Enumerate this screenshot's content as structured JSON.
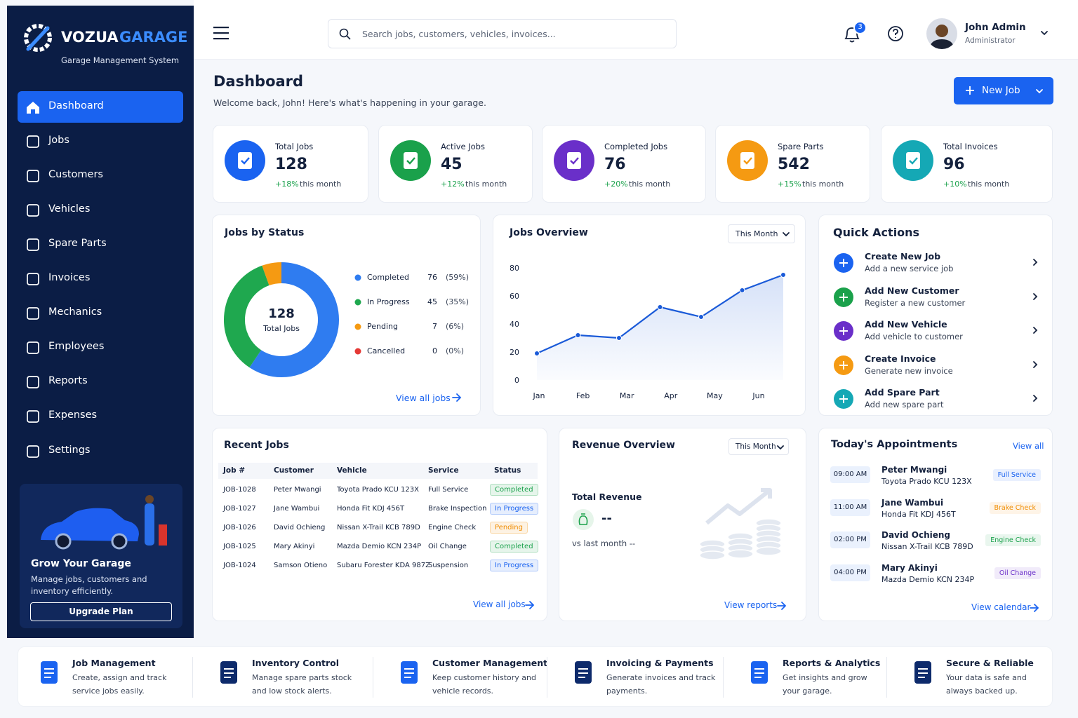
{
  "sidebar": {
    "brand": "VOZUA",
    "brand_accent": "GARAGE",
    "tagline": "Garage Management System",
    "nav": [
      "Dashboard",
      "Jobs",
      "Customers",
      "Vehicles",
      "Spare Parts",
      "Invoices",
      "Mechanics",
      "Employees",
      "Reports",
      "Expenses",
      "Settings"
    ],
    "active": 0,
    "promo": {
      "title": "Grow Your Garage",
      "text_lines": [
        "Manage jobs, customers and",
        "inventory efficiently."
      ],
      "button": "Upgrade Plan"
    }
  },
  "topbar": {
    "search": "Search jobs, customers, vehicles, invoices...",
    "notifications": 3,
    "user": {
      "name": "John Admin",
      "role": "Administrator"
    }
  },
  "header": {
    "title": "Dashboard",
    "subtitle": "Welcome back, John! Here's what's happening in your garage.",
    "button": "New Job"
  },
  "stats": [
    {
      "label": "Total Jobs",
      "value": 128,
      "change": "+18%",
      "period": "this month",
      "color": "#1a63f0"
    },
    {
      "label": "Active Jobs",
      "value": 45,
      "change": "+12%",
      "period": "this month",
      "color": "#1aa14b"
    },
    {
      "label": "Completed Jobs",
      "value": 76,
      "change": "+20%",
      "period": "this month",
      "color": "#6a2fc9"
    },
    {
      "label": "Spare Parts",
      "value": 542,
      "change": "+15%",
      "period": "this month",
      "color": "#f59a12"
    },
    {
      "label": "Total Invoices",
      "value": 96,
      "change": "+10%",
      "period": "this month",
      "color": "#15a8b5"
    }
  ],
  "jobs_by_status": {
    "type": "pie",
    "title": "Jobs by Status",
    "center_value": 128,
    "center_label": "Total Jobs",
    "categories": [
      "Completed",
      "In Progress",
      "Pending",
      "Cancelled"
    ],
    "values": [
      76,
      45,
      7,
      0
    ],
    "percent_labels": [
      "(59%)",
      "(35%)",
      "(6%)",
      "(0%)"
    ],
    "colors": [
      "#2f7cf0",
      "#1fa84f",
      "#f59a12",
      "#e53935"
    ],
    "link": "View all jobs"
  },
  "jobs_overview": {
    "type": "line",
    "title": "Jobs Overview",
    "filter": "This Month",
    "categories": [
      "Jan",
      "Feb",
      "Mar",
      "Apr",
      "May",
      "Jun",
      null
    ],
    "values": [
      19,
      32,
      30,
      52,
      45,
      64,
      75
    ],
    "ylim": [
      0,
      80
    ],
    "yticks": [
      0,
      20,
      40,
      60,
      80
    ],
    "grid": false,
    "color": "#1a5ad8"
  },
  "quick_actions": {
    "title": "Quick Actions",
    "items": [
      {
        "title": "Create New Job",
        "subtitle": "Add a new service job",
        "color": "#1a63f0"
      },
      {
        "title": "Add New Customer",
        "subtitle": "Register a new customer",
        "color": "#1aa14b"
      },
      {
        "title": "Add New Vehicle",
        "subtitle": "Add vehicle to customer",
        "color": "#6a2fc9"
      },
      {
        "title": "Create Invoice",
        "subtitle": "Generate new invoice",
        "color": "#f59a12"
      },
      {
        "title": "Add Spare Part",
        "subtitle": "Add new spare part",
        "color": "#15a8b5"
      }
    ]
  },
  "recent_jobs": {
    "title": "Recent Jobs",
    "columns": [
      "Job #",
      "Customer",
      "Vehicle",
      "Service",
      "Status"
    ],
    "rows": [
      [
        "JOB-1028",
        "Peter Mwangi",
        "Toyota Prado KCU 123X",
        "Full Service",
        "Completed"
      ],
      [
        "JOB-1027",
        "Jane Wambui",
        "Honda Fit KDJ 456T",
        "Brake Inspection",
        "In Progress"
      ],
      [
        "JOB-1026",
        "David Ochieng",
        "Nissan X-Trail KCB 789D",
        "Engine Check",
        "Pending"
      ],
      [
        "JOB-1025",
        "Mary Akinyi",
        "Mazda Demio KCN 234P",
        "Oil Change",
        "Completed"
      ],
      [
        "JOB-1024",
        "Samson Otieno",
        "Subaru Forester KDA 987Z",
        "Suspension",
        "In Progress"
      ]
    ],
    "status_colors": [
      "#1aa14b",
      "#1a63f0",
      "#f08c00",
      "#1aa14b",
      "#1a63f0"
    ],
    "link": "View all jobs"
  },
  "revenue": {
    "title": "Revenue Overview",
    "filter": "This Month",
    "label": "Total Revenue",
    "value": "--",
    "compare": "vs last month --",
    "link": "View reports"
  },
  "appointments": {
    "title": "Today's Appointments",
    "view_all": "View all",
    "items": [
      {
        "time": "09:00 AM",
        "name": "Peter Mwangi",
        "vehicle": "Toyota Prado KCU 123X",
        "service": "Full Service",
        "color": "#1a63f0"
      },
      {
        "time": "11:00 AM",
        "name": "Jane Wambui",
        "vehicle": "Honda Fit KDJ 456T",
        "service": "Brake Check",
        "color": "#f08c00"
      },
      {
        "time": "02:00 PM",
        "name": "David Ochieng",
        "vehicle": "Nissan X-Trail KCB 789D",
        "service": "Engine Check",
        "color": "#1aa14b"
      },
      {
        "time": "04:00 PM",
        "name": "Mary Akinyi",
        "vehicle": "Mazda Demio KCN 234P",
        "service": "Oil Change",
        "color": "#6a2fc9"
      }
    ],
    "link": "View calendar"
  },
  "features": [
    {
      "title": "Job Management",
      "lines": [
        "Create, assign and track",
        "service jobs easily."
      ]
    },
    {
      "title": "Inventory Control",
      "lines": [
        "Manage spare parts stock",
        "and low stock alerts."
      ]
    },
    {
      "title": "Customer Management",
      "lines": [
        "Keep customer history and",
        "vehicle records."
      ]
    },
    {
      "title": "Invoicing & Payments",
      "lines": [
        "Generate invoices and track",
        "payments."
      ]
    },
    {
      "title": "Reports & Analytics",
      "lines": [
        "Get insights and grow",
        "your garage."
      ]
    },
    {
      "title": "Secure & Reliable",
      "lines": [
        "Your data is safe and",
        "always backed up."
      ]
    }
  ]
}
